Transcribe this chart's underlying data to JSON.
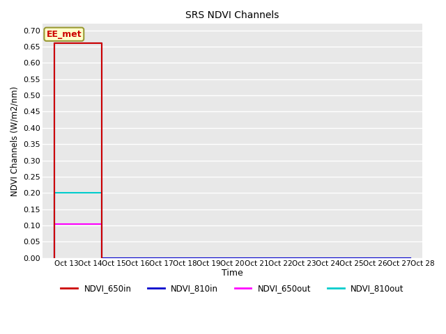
{
  "title": "SRS NDVI Channels",
  "ylabel": "NDVI Channels (W/m2/nm)",
  "xlabel": "Time",
  "ylim": [
    0.0,
    0.72
  ],
  "yticks": [
    0.0,
    0.05,
    0.1,
    0.15,
    0.2,
    0.25,
    0.3,
    0.35,
    0.4,
    0.45,
    0.5,
    0.55,
    0.6,
    0.65,
    0.7
  ],
  "figure_bg": "#ffffff",
  "plot_bg": "#e8e8e8",
  "grid_color": "#ffffff",
  "annotation_text": "EE_met",
  "annotation_color": "#cc0000",
  "annotation_bg": "#ffffcc",
  "annotation_border": "#999933",
  "xtick_labels": [
    "Oct 13",
    "Oct 14",
    "Oct 15",
    "Oct 16",
    "Oct 17",
    "Oct 18",
    "Oct 19",
    "Oct 20",
    "Oct 21",
    "Oct 22",
    "Oct 23",
    "Oct 24",
    "Oct 25",
    "Oct 26",
    "Oct 27",
    "Oct 28"
  ],
  "xlim": [
    -0.5,
    15.5
  ],
  "series": {
    "NDVI_650in": {
      "color": "#cc0000",
      "x": [
        0,
        0,
        2,
        2
      ],
      "y": [
        0.0,
        0.66,
        0.66,
        0.0
      ]
    },
    "NDVI_810in": {
      "color": "#0000cc",
      "x": [
        0,
        0,
        2,
        2,
        15
      ],
      "y": [
        0.0,
        0.66,
        0.66,
        0.0,
        0.0
      ]
    },
    "NDVI_650out": {
      "color": "#ff00ff",
      "x": [
        0,
        0,
        2,
        2,
        15
      ],
      "y": [
        0.0,
        0.105,
        0.105,
        0.0,
        0.0
      ]
    },
    "NDVI_810out": {
      "color": "#00cccc",
      "x": [
        0,
        0,
        2,
        2,
        15
      ],
      "y": [
        0.0,
        0.2,
        0.2,
        0.0,
        0.0
      ]
    }
  },
  "legend_order": [
    "NDVI_650in",
    "NDVI_810in",
    "NDVI_650out",
    "NDVI_810out"
  ]
}
